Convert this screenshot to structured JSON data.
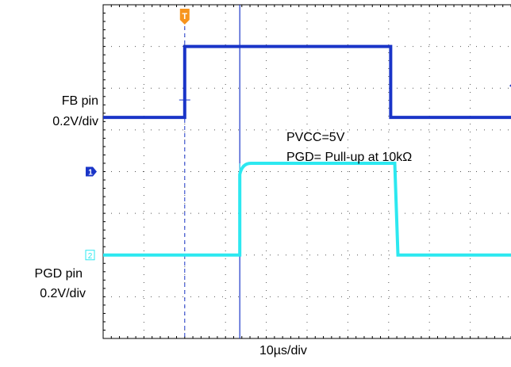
{
  "chart_data": {
    "type": "line",
    "title": "",
    "x_scale_label": "10µs/div",
    "grid": true,
    "divisions": {
      "x": 10,
      "y": 8
    },
    "x_range_div": [
      -2,
      8
    ],
    "y_range_div": [
      -4,
      4
    ],
    "trigger_marker": {
      "label": "T",
      "x_div": 0,
      "color": "#f7941d"
    },
    "cursor": {
      "x_div": 1.35,
      "color": "#1a35c8"
    },
    "annotations": {
      "condition_1": "PVCC=5V",
      "condition_2": "PGD= Pull-up at 10kΩ"
    },
    "channels": [
      {
        "name": "FB  pin",
        "scale": "0.2V/div",
        "marker": "1",
        "color": "#1a35c8",
        "ref_div": 0,
        "levels_div": {
          "low": 1.3,
          "high": 3.0
        },
        "rise_div": 0.0,
        "fall_div": 5.05
      },
      {
        "name": "PGD  pin",
        "scale": "0.2V/div",
        "marker": "2",
        "color": "#2ce8f0",
        "ref_div": -2.0,
        "levels_div": {
          "low": -2.0,
          "high": 0.2
        },
        "rise_div": 1.35,
        "fall_div": 5.15
      }
    ]
  }
}
